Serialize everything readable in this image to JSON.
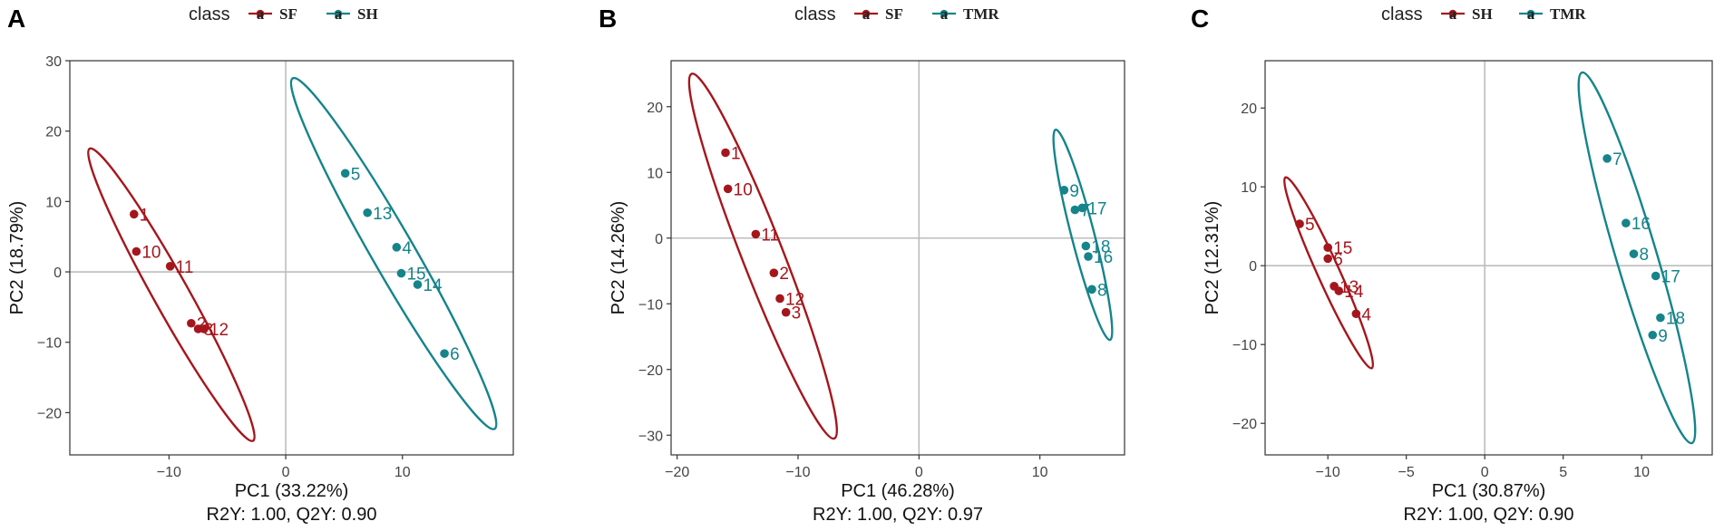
{
  "colors": {
    "group_red": "#a5161c",
    "group_teal": "#15848b",
    "refline": "#bdbdbd",
    "frame": "#333333"
  },
  "chart_data": [
    {
      "type": "scatter",
      "panel": "A",
      "legend_title": "class",
      "xlabel": "PC1 (33.22%)",
      "ylabel": "PC2 (18.79%)",
      "subtitle": "R2Y: 1.00, Q2Y: 0.90",
      "xlim": [
        -18.5,
        19.5
      ],
      "ylim": [
        -26,
        30
      ],
      "xticks": [
        -10,
        0,
        10
      ],
      "xtick_labels": [
        "−10",
        "0",
        "10"
      ],
      "yticks": [
        -20,
        -10,
        0,
        10,
        20,
        30
      ],
      "ytick_labels": [
        "−20",
        "−10",
        "0",
        "10",
        "20",
        "30"
      ],
      "series": [
        {
          "name": "SF",
          "color": "#a5161c",
          "points": [
            {
              "label": "1",
              "x": -13.0,
              "y": 8.2
            },
            {
              "label": "10",
              "x": -12.8,
              "y": 2.9
            },
            {
              "label": "11",
              "x": -9.9,
              "y": 0.8
            },
            {
              "label": "2",
              "x": -8.1,
              "y": -7.3
            },
            {
              "label": "3",
              "x": -7.5,
              "y": -8.1
            },
            {
              "label": "12",
              "x": -7.0,
              "y": -8.1
            }
          ],
          "ellipse": [
            [
              -16.8,
              17.5
            ],
            [
              -2.8,
              -24.0
            ]
          ]
        },
        {
          "name": "SH",
          "color": "#15848b",
          "points": [
            {
              "label": "5",
              "x": 5.1,
              "y": 14.0
            },
            {
              "label": "13",
              "x": 7.0,
              "y": 8.4
            },
            {
              "label": "4",
              "x": 9.5,
              "y": 3.5
            },
            {
              "label": "15",
              "x": 9.9,
              "y": -0.2
            },
            {
              "label": "14",
              "x": 11.3,
              "y": -1.8
            },
            {
              "label": "6",
              "x": 13.6,
              "y": -11.6
            }
          ],
          "ellipse": [
            [
              0.6,
              27.5
            ],
            [
              17.9,
              -22.3
            ]
          ]
        }
      ]
    },
    {
      "type": "scatter",
      "panel": "B",
      "legend_title": "class",
      "xlabel": "PC1 (46.28%)",
      "ylabel": "PC2 (14.26%)",
      "subtitle": "R2Y: 1.00, Q2Y: 0.97",
      "xlim": [
        -20.5,
        17.0
      ],
      "ylim": [
        -33,
        27
      ],
      "xticks": [
        -20,
        -10,
        0,
        10
      ],
      "xtick_labels": [
        "−20",
        "−10",
        "0",
        "10"
      ],
      "yticks": [
        -30,
        -20,
        -10,
        0,
        10,
        20
      ],
      "ytick_labels": [
        "−30",
        "−20",
        "−10",
        "0",
        "10",
        "20"
      ],
      "series": [
        {
          "name": "SF",
          "color": "#a5161c",
          "points": [
            {
              "label": "1",
              "x": -16.0,
              "y": 13.0
            },
            {
              "label": "10",
              "x": -15.8,
              "y": 7.5
            },
            {
              "label": "11",
              "x": -13.5,
              "y": 0.6
            },
            {
              "label": "2",
              "x": -12.0,
              "y": -5.3
            },
            {
              "label": "12",
              "x": -11.5,
              "y": -9.2
            },
            {
              "label": "3",
              "x": -11.0,
              "y": -11.3
            }
          ],
          "ellipse": [
            [
              -18.8,
              25.0
            ],
            [
              -7.0,
              -30.5
            ]
          ]
        },
        {
          "name": "TMR",
          "color": "#15848b",
          "points": [
            {
              "label": "9",
              "x": 12.0,
              "y": 7.3
            },
            {
              "label": "7",
              "x": 12.9,
              "y": 4.3
            },
            {
              "label": "17",
              "x": 13.5,
              "y": 4.6
            },
            {
              "label": "18",
              "x": 13.8,
              "y": -1.2
            },
            {
              "label": "16",
              "x": 14.0,
              "y": -2.8
            },
            {
              "label": "8",
              "x": 14.3,
              "y": -7.8
            }
          ],
          "ellipse": [
            [
              11.3,
              16.5
            ],
            [
              15.8,
              -15.5
            ]
          ]
        }
      ]
    },
    {
      "type": "scatter",
      "panel": "C",
      "legend_title": "class",
      "xlabel": "PC1 (30.87%)",
      "ylabel": "PC2 (12.31%)",
      "subtitle": "R2Y: 1.00, Q2Y: 0.90",
      "xlim": [
        -14.0,
        14.5
      ],
      "ylim": [
        -24,
        26
      ],
      "xticks": [
        -10,
        -5,
        0,
        5,
        10
      ],
      "xtick_labels": [
        "−10",
        "−5",
        "0",
        "5",
        "10"
      ],
      "yticks": [
        -20,
        -10,
        0,
        10,
        20
      ],
      "ytick_labels": [
        "−20",
        "−10",
        "0",
        "10",
        "20"
      ],
      "series": [
        {
          "name": "SH",
          "color": "#a5161c",
          "points": [
            {
              "label": "5",
              "x": -11.8,
              "y": 5.3
            },
            {
              "label": "15",
              "x": -10.0,
              "y": 2.3
            },
            {
              "label": "6",
              "x": -10.0,
              "y": 0.9
            },
            {
              "label": "13",
              "x": -9.6,
              "y": -2.6
            },
            {
              "label": "14",
              "x": -9.3,
              "y": -3.2
            },
            {
              "label": "4",
              "x": -8.2,
              "y": -6.1
            }
          ],
          "ellipse": [
            [
              -12.7,
              11.2
            ],
            [
              -7.2,
              -13.0
            ]
          ]
        },
        {
          "name": "TMR",
          "color": "#15848b",
          "points": [
            {
              "label": "7",
              "x": 7.8,
              "y": 13.6
            },
            {
              "label": "16",
              "x": 9.0,
              "y": 5.4
            },
            {
              "label": "8",
              "x": 9.5,
              "y": 1.5
            },
            {
              "label": "17",
              "x": 10.9,
              "y": -1.3
            },
            {
              "label": "18",
              "x": 11.2,
              "y": -6.6
            },
            {
              "label": "9",
              "x": 10.7,
              "y": -8.8
            }
          ],
          "ellipse": [
            [
              6.2,
              24.5
            ],
            [
              13.2,
              -22.5
            ]
          ]
        }
      ]
    }
  ]
}
